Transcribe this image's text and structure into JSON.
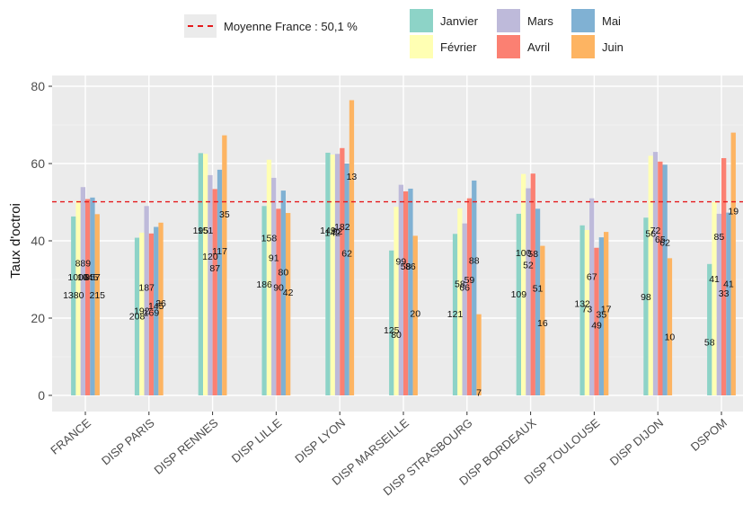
{
  "legend": {
    "reference_label": "Moyenne France : 50,1 %",
    "months": [
      {
        "name": "Janvier",
        "color": "#8dd3c7"
      },
      {
        "name": "Février",
        "color": "#ffffb3"
      },
      {
        "name": "Mars",
        "color": "#bebada"
      },
      {
        "name": "Avril",
        "color": "#fb8072"
      },
      {
        "name": "Mai",
        "color": "#80b1d3"
      },
      {
        "name": "Juin",
        "color": "#fdb462"
      }
    ]
  },
  "chart_data": {
    "type": "bar",
    "title": "",
    "xlabel": "",
    "ylabel": "Taux d'octroi",
    "ylim": [
      0,
      80
    ],
    "yticks": [
      0,
      20,
      40,
      60,
      80
    ],
    "grid": true,
    "reference_line": {
      "value": 50.1,
      "label": "Moyenne France : 50,1 %",
      "color": "#e41a1c",
      "style": "dashed"
    },
    "categories": [
      "FRANCE",
      "DISP PARIS",
      "DISP RENNES",
      "DISP LILLE",
      "DISP LYON",
      "DISP MARSEILLE",
      "DISP STRASBOURG",
      "DISP BORDEAUX",
      "DISP TOULOUSE",
      "DISP DIJON",
      "DSPOM"
    ],
    "series": [
      {
        "name": "Janvier",
        "values": [
          46.3,
          40.8,
          62.7,
          49.0,
          62.8,
          37.5,
          41.8,
          47.0,
          44.0,
          46.0,
          34.0
        ]
      },
      {
        "name": "Février",
        "values": [
          50.4,
          42.1,
          62.5,
          61.0,
          62.3,
          48.8,
          48.4,
          57.3,
          42.8,
          62.0,
          50.0
        ]
      },
      {
        "name": "Mars",
        "values": [
          53.9,
          49.0,
          57.0,
          56.3,
          62.5,
          54.5,
          44.5,
          53.6,
          51.0,
          63.0,
          47.0
        ]
      },
      {
        "name": "Avril",
        "values": [
          50.8,
          41.9,
          53.4,
          48.3,
          64.0,
          52.8,
          51.0,
          57.4,
          38.2,
          60.5,
          61.4
        ]
      },
      {
        "name": "Mai",
        "values": [
          51.2,
          43.6,
          58.4,
          53.0,
          60.0,
          53.5,
          55.6,
          48.3,
          40.9,
          59.7,
          47.3
        ]
      },
      {
        "name": "Juin",
        "values": [
          46.9,
          44.7,
          67.3,
          47.2,
          76.4,
          41.3,
          21.0,
          38.7,
          42.3,
          35.5,
          68.0
        ]
      }
    ],
    "bar_labels": [
      [
        "1380",
        "1006",
        "889",
        "1045",
        "857",
        "215"
      ],
      [
        "208",
        "192",
        "187",
        "169",
        "145",
        "26"
      ],
      [
        "195",
        "151",
        "120",
        "87",
        "117",
        "35"
      ],
      [
        "186",
        "158",
        "91",
        "90",
        "80",
        "42"
      ],
      [
        "149",
        "142",
        "92",
        "182",
        "62",
        "13"
      ],
      [
        "125",
        "80",
        "99",
        "58",
        "86",
        "20"
      ],
      [
        "121",
        "58",
        "66",
        "59",
        "88",
        "7"
      ],
      [
        "109",
        "100",
        "52",
        "58",
        "51",
        "16"
      ],
      [
        "132",
        "73",
        "67",
        "49",
        "35",
        "17"
      ],
      [
        "98",
        "56",
        "72",
        "65",
        "62",
        "10"
      ],
      [
        "58",
        "41",
        "85",
        "33",
        "41",
        "19"
      ]
    ],
    "bar_label_values": [
      [
        26.0,
        30.7,
        34.3,
        30.7,
        30.7,
        26.0
      ],
      [
        20.6,
        22.0,
        28.0,
        21.5,
        23.3,
        24.0
      ],
      [
        42.8,
        42.8,
        36.0,
        33.0,
        37.5,
        47.0
      ],
      [
        28.8,
        40.8,
        35.7,
        28.0,
        32.0,
        26.8
      ],
      [
        42.8,
        42.2,
        42.6,
        43.7,
        36.9,
        56.8
      ],
      [
        17.0,
        15.8,
        34.8,
        33.5,
        33.5,
        21.3
      ],
      [
        21.2,
        29.0,
        28.0,
        30.0,
        35.0,
        0.8
      ],
      [
        26.3,
        37.0,
        33.8,
        36.8,
        27.8,
        18.8
      ],
      [
        23.8,
        22.5,
        30.8,
        18.2,
        21.0,
        22.5
      ],
      [
        25.6,
        42.0,
        42.8,
        40.5,
        39.6,
        15.2
      ],
      [
        13.8,
        30.2,
        41.2,
        26.5,
        29.0,
        47.8
      ]
    ]
  }
}
